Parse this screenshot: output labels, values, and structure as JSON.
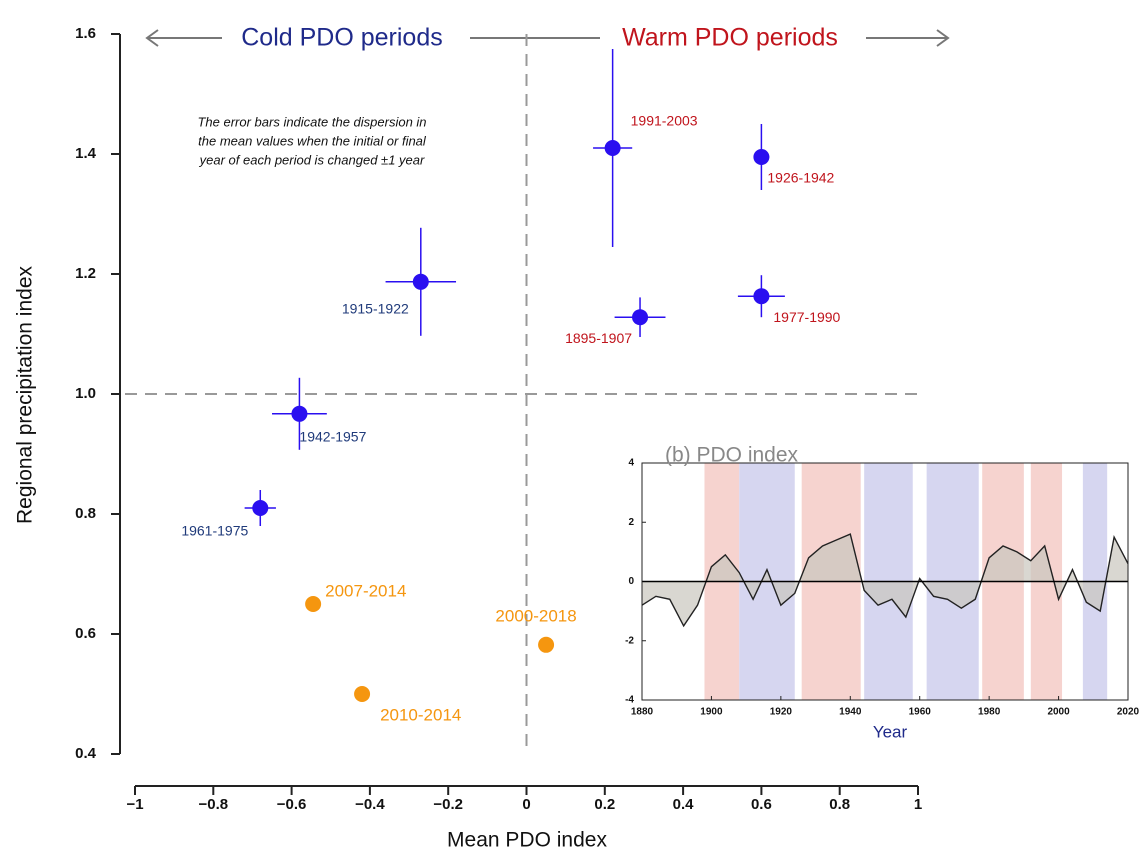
{
  "chart_data": [
    {
      "type": "scatter",
      "header_left": "Cold PDO periods",
      "header_right": "Warm PDO periods",
      "note": [
        "The error bars indicate the dispersion in",
        "the mean values when the initial or final",
        "year of each period is changed ±1 year"
      ],
      "xlabel": "Mean PDO index",
      "ylabel": "Regional precipitation index",
      "xlim": [
        -1,
        1
      ],
      "xticks": [
        {
          "value": -1,
          "label": "−1"
        },
        {
          "value": -0.8,
          "label": "−0.8"
        },
        {
          "value": -0.6,
          "label": "−0.6"
        },
        {
          "value": -0.4,
          "label": "−0.4"
        },
        {
          "value": -0.2,
          "label": "−0.2"
        },
        0,
        0.2,
        0.4,
        0.6,
        0.8,
        1
      ],
      "ylim": [
        0.4,
        1.6
      ],
      "yticks": [
        0.4,
        0.6,
        0.8,
        {
          "value": 1,
          "label": "1.0"
        },
        1.2,
        1.4,
        1.6
      ],
      "reference_lines": {
        "x": 0,
        "y": 1
      },
      "series": [
        {
          "color": "#2a0ff0",
          "label_color": "#1f3a7a",
          "labels": [
            "1915-1922",
            "1942-1957",
            "1961-1975"
          ],
          "x": [
            -0.27,
            -0.58,
            -0.68
          ],
          "values": [
            1.187,
            0.967,
            0.81
          ],
          "xerr": [
            0.09,
            0.07,
            0.04
          ],
          "yerr": [
            0.09,
            0.06,
            0.03
          ]
        },
        {
          "color": "#2a0ff0",
          "label_color": "#c0141c",
          "labels": [
            "1991-2003",
            "1926-1942",
            "1895-1907",
            "1977-1990"
          ],
          "x": [
            0.22,
            0.6,
            0.29,
            0.6
          ],
          "values": [
            1.41,
            1.395,
            1.128,
            1.163
          ],
          "xerr": [
            0.05,
            0.02,
            0.065,
            0.06
          ],
          "yerr": [
            0.165,
            0.055,
            0.033,
            0.035
          ]
        },
        {
          "color": "#f5960f",
          "label_color": "#f5960f",
          "labels": [
            "2007-2014",
            "2010-2014",
            "2000-2018"
          ],
          "x": [
            -0.545,
            -0.42,
            0.05
          ],
          "values": [
            0.65,
            0.5,
            0.582
          ]
        }
      ]
    },
    {
      "type": "area",
      "title": "(b) PDO index",
      "xlabel": "Year",
      "xlim": [
        1880,
        2020
      ],
      "xticks": [
        1880,
        1900,
        1920,
        1940,
        1960,
        1980,
        2000,
        2020
      ],
      "ylim": [
        -4,
        4
      ],
      "yticks": [
        -4,
        -2,
        0,
        2,
        4
      ],
      "bands": [
        {
          "start": 1898,
          "end": 1908,
          "color": "#f6d3cf"
        },
        {
          "start": 1908,
          "end": 1924,
          "color": "#d6d6f0"
        },
        {
          "start": 1926,
          "end": 1943,
          "color": "#f6d3cf"
        },
        {
          "start": 1944,
          "end": 1958,
          "color": "#d6d6f0"
        },
        {
          "start": 1962,
          "end": 1977,
          "color": "#d6d6f0"
        },
        {
          "start": 1978,
          "end": 1990,
          "color": "#f6d3cf"
        },
        {
          "start": 1992,
          "end": 2001,
          "color": "#f6d3cf"
        },
        {
          "start": 2007,
          "end": 2014,
          "color": "#d6d6f0"
        }
      ],
      "x": [
        1880,
        1884,
        1888,
        1892,
        1896,
        1900,
        1904,
        1908,
        1912,
        1916,
        1920,
        1924,
        1928,
        1932,
        1936,
        1940,
        1944,
        1948,
        1952,
        1956,
        1960,
        1964,
        1968,
        1972,
        1976,
        1980,
        1984,
        1988,
        1992,
        1996,
        2000,
        2004,
        2008,
        2012,
        2016,
        2020
      ],
      "values": [
        -0.8,
        -0.5,
        -0.6,
        -1.5,
        -0.8,
        0.5,
        0.9,
        0.3,
        -0.6,
        0.4,
        -0.8,
        -0.4,
        0.8,
        1.2,
        1.4,
        1.6,
        -0.3,
        -0.8,
        -0.6,
        -1.2,
        0.1,
        -0.5,
        -0.6,
        -0.9,
        -0.6,
        0.8,
        1.2,
        1.0,
        0.7,
        1.2,
        -0.6,
        0.4,
        -0.7,
        -1.0,
        1.5,
        0.6
      ],
      "color": "#222222",
      "fill": "#c9c6bd"
    }
  ]
}
